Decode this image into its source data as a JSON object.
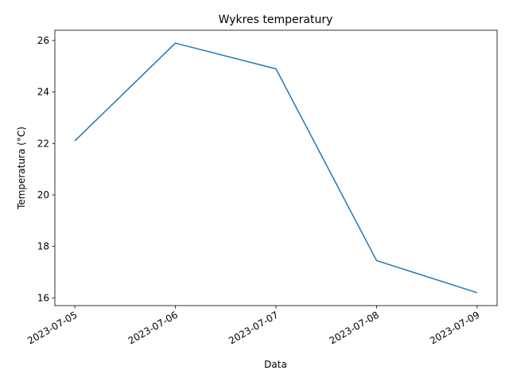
{
  "chart_data": {
    "type": "line",
    "title": "Wykres temperatury",
    "xlabel": "Data",
    "ylabel": "Temperatura (°C)",
    "x": [
      "2023-07-05",
      "2023-07-06",
      "2023-07-07",
      "2023-07-08",
      "2023-07-09"
    ],
    "series": [
      {
        "values": [
          22.1,
          25.9,
          24.9,
          17.45,
          16.2
        ]
      }
    ],
    "ylim": [
      15.7,
      26.4
    ],
    "yticks": [
      16,
      18,
      20,
      22,
      24,
      26
    ],
    "line_color": "#1f77b4",
    "grid": false,
    "legend": "none"
  }
}
